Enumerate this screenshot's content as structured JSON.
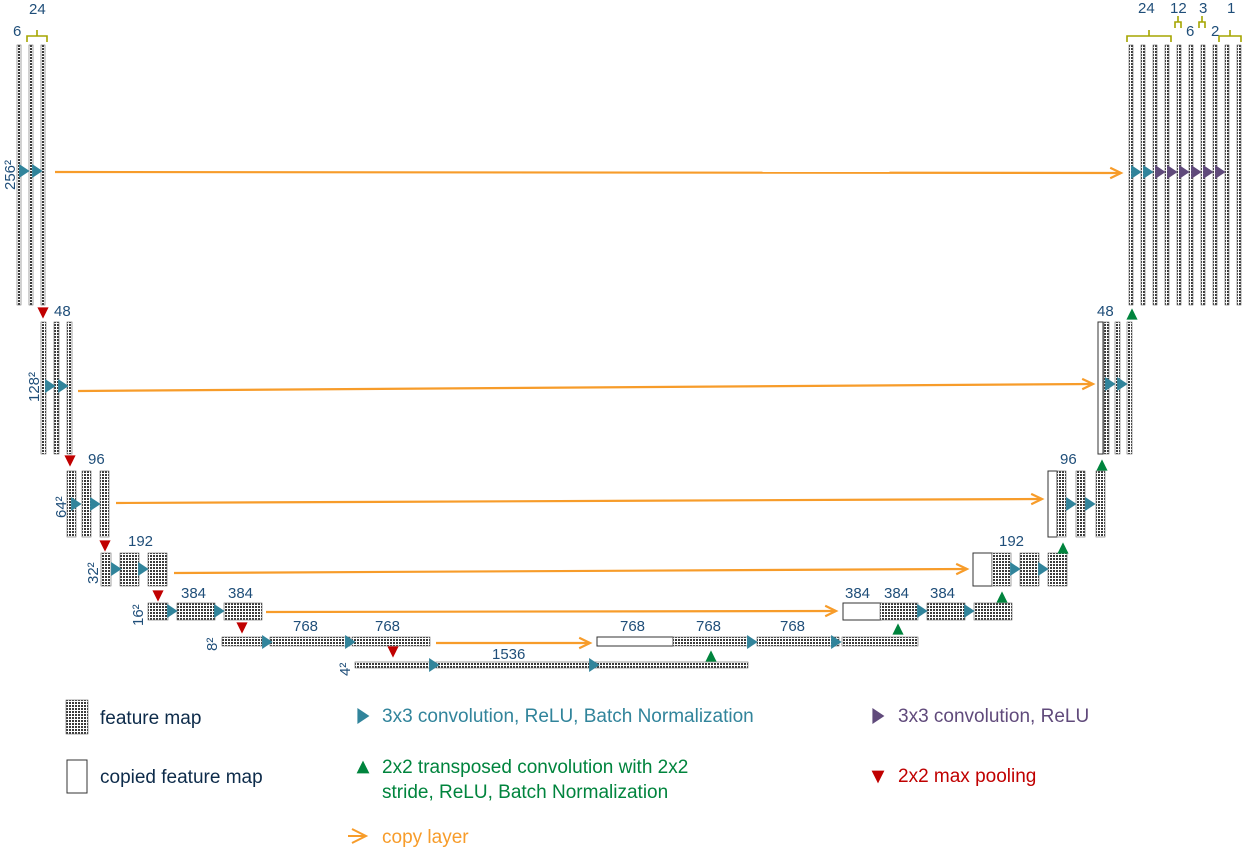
{
  "colors": {
    "navy": "#1f4e79",
    "conv": "#31849b",
    "conv_relu": "#604a7b",
    "transposed": "#00843d",
    "pool": "#c00000",
    "copy": "#f79c2a",
    "brace": "#a5a500"
  },
  "labels": {
    "top_6": "6",
    "top_24": "24",
    "right_24": "24",
    "right_12": "12",
    "right_6": "6",
    "right_3": "3",
    "right_2": "2",
    "right_1": "1",
    "res_256": "256²",
    "res_128": "128²",
    "res_64": "64²",
    "res_32": "32²",
    "res_16": "16²",
    "res_8": "8²",
    "res_4": "4²",
    "enc_48": "48",
    "dec_48": "48",
    "enc_96": "96",
    "dec_96": "96",
    "enc_192": "192",
    "dec_192": "192",
    "enc_384_a": "384",
    "enc_384_b": "384",
    "dec_384_a": "384",
    "dec_384_b": "384",
    "dec_384_c": "384",
    "enc_768_a": "768",
    "enc_768_b": "768",
    "dec_768_a": "768",
    "dec_768_b": "768",
    "dec_768_c": "768",
    "bottom_1536": "1536"
  },
  "legend": {
    "feature_map": "feature map",
    "copied_feature_map": "copied feature map",
    "conv_bn": "3x3 convolution, ReLU, Batch Normalization",
    "conv_relu": "3x3 convolution, ReLU",
    "transposed_line1": "2x2 transposed convolution with 2x2",
    "transposed_line2": "stride, ReLU, Batch Normalization",
    "max_pool": "2x2 max pooling",
    "copy_layer": "copy layer"
  }
}
